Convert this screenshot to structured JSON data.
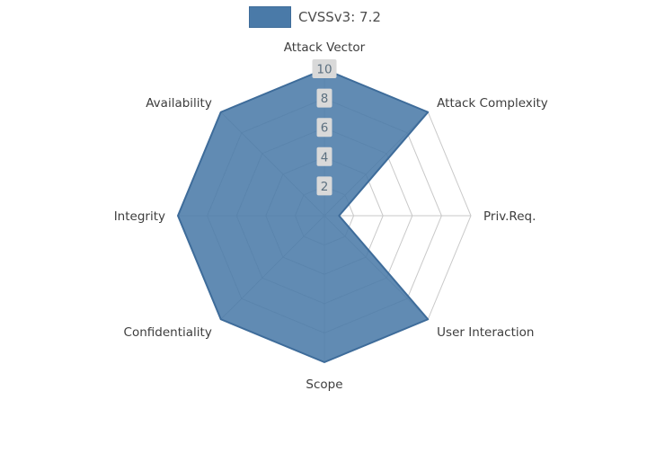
{
  "chart_data": {
    "type": "radar",
    "title": "",
    "legend": {
      "label": "CVSSv3: 7.2"
    },
    "legend_position": "top-center",
    "categories": [
      "Attack Vector",
      "Attack Complexity",
      "Priv.Req.",
      "User Interaction",
      "Scope",
      "Confidentiality",
      "Integrity",
      "Availability"
    ],
    "series": [
      {
        "name": "CVSSv3: 7.2",
        "values": [
          10,
          10,
          1,
          10,
          10,
          10,
          10,
          10
        ]
      }
    ],
    "ticks": [
      2,
      4,
      6,
      8,
      10
    ],
    "r_max": 10,
    "grid": true,
    "colors": {
      "fill": "#4a7aa8",
      "edge": "#3e6c9a",
      "grid": "#c9c9c9",
      "tick_box": "#d9d9d9",
      "tick_text": "#5c7080",
      "label": "#3d3d3d",
      "legend_text": "#4d4d4d"
    }
  }
}
